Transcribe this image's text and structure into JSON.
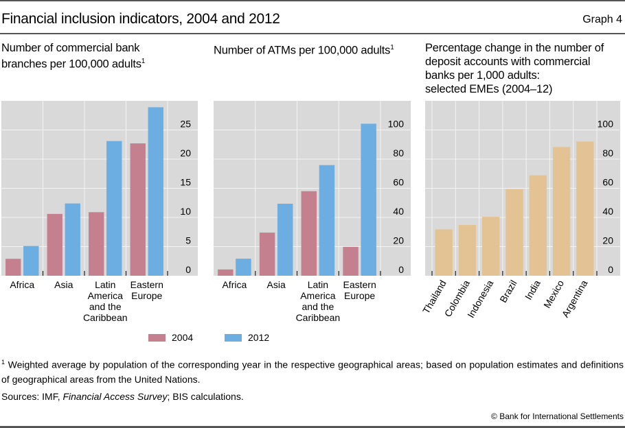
{
  "header": {
    "title": "Financial inclusion indicators, 2004 and 2012",
    "graph_number": "Graph 4"
  },
  "colors": {
    "series_2004": "#c4808f",
    "series_2012": "#6caee1",
    "change": "#e3c393",
    "plot_bg": "#d9d9d9",
    "grid": "#f4f4f4"
  },
  "chart_data": [
    {
      "type": "bar",
      "title": "Number of commercial bank branches per 100,000 adults",
      "title_footnote": "1",
      "categories": [
        "Africa",
        "Asia",
        "Latin America and the Caribbean",
        "Eastern Europe"
      ],
      "category_lines": [
        [
          "Africa"
        ],
        [
          "Asia"
        ],
        [
          "Latin",
          "America",
          "and the",
          "Caribbean"
        ],
        [
          "Eastern",
          "Europe"
        ]
      ],
      "series": [
        {
          "name": "2004",
          "values": [
            2.9,
            10.6,
            10.9,
            22.7
          ]
        },
        {
          "name": "2012",
          "values": [
            5.1,
            12.4,
            23.1,
            28.9
          ]
        }
      ],
      "ylim": [
        0,
        30
      ],
      "yticks": [
        0,
        5,
        10,
        15,
        20,
        25
      ],
      "y_axis_side": "right",
      "grid": true
    },
    {
      "type": "bar",
      "title": "Number of ATMs per 100,000 adults",
      "title_footnote": "1",
      "categories": [
        "Africa",
        "Asia",
        "Latin America and the Caribbean",
        "Eastern Europe"
      ],
      "category_lines": [
        [
          "Africa"
        ],
        [
          "Asia"
        ],
        [
          "Latin",
          "America",
          "and the",
          "Caribbean"
        ],
        [
          "Eastern",
          "Europe"
        ]
      ],
      "series": [
        {
          "name": "2004",
          "values": [
            4.3,
            29.6,
            58.0,
            19.8
          ]
        },
        {
          "name": "2012",
          "values": [
            11.7,
            49.4,
            75.9,
            104.3
          ]
        }
      ],
      "ylim": [
        0,
        120
      ],
      "yticks": [
        0,
        20,
        40,
        60,
        80,
        100
      ],
      "y_axis_side": "right",
      "grid": true
    },
    {
      "type": "bar",
      "title": "Percentage change in the number of deposit accounts with commercial banks per 1,000 adults: selected EMEs (2004–12)",
      "title_lines": [
        "Percentage change in the number of",
        "deposit accounts with commercial",
        "banks per 1,000 adults:",
        "selected EMEs (2004–12)"
      ],
      "categories": [
        "Thailand",
        "Colombia",
        "Indonesia",
        "Brazil",
        "India",
        "Mexico",
        "Argentina"
      ],
      "values": [
        31.8,
        34.8,
        40.4,
        59.4,
        68.9,
        88.3,
        92.1
      ],
      "ylim": [
        0,
        120
      ],
      "yticks": [
        0,
        20,
        40,
        60,
        80,
        100
      ],
      "y_axis_side": "right",
      "grid": true
    }
  ],
  "panel_titles": {
    "p1_line1": "Number of commercial bank",
    "p1_line2": "branches per 100,000 adults",
    "p1_sup": "1",
    "p2_line1": "Number of ATMs per 100,000 adults",
    "p2_sup": "1",
    "p3_line1": "Percentage change in the number of",
    "p3_line2": "deposit accounts with commercial",
    "p3_line3": "banks per 1,000 adults:",
    "p3_line4": "selected EMEs (2004–12)"
  },
  "legend": {
    "items": [
      {
        "label": "2004"
      },
      {
        "label": "2012"
      }
    ]
  },
  "footnote": {
    "marker": "1",
    "text": "Weighted average by population of the corresponding year in the respective geographical areas; based on population estimates and definitions of geographical areas from the United Nations."
  },
  "sources": {
    "prefix": "Sources: IMF, ",
    "italic": "Financial Access Survey",
    "suffix": "; BIS calculations."
  },
  "copyright": "© Bank for International Settlements"
}
